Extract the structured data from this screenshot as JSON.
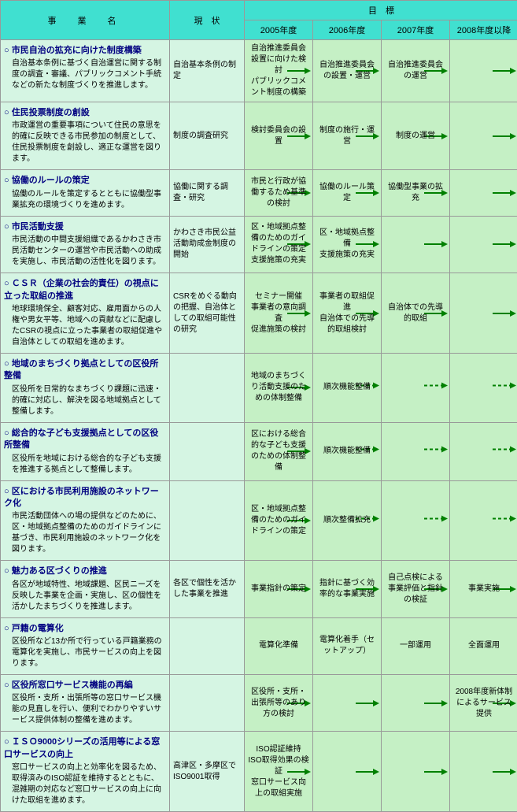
{
  "headers": {
    "business": "事　業　名",
    "current": "現　状",
    "target": "目　標",
    "years": [
      "2005年度",
      "2006年度",
      "2007年度",
      "2008年度以降"
    ]
  },
  "rows": [
    {
      "title": "市民自治の拡充に向けた制度構築",
      "desc": "自治基本条例に基づく自治運営に関する制度の調査・審議、パブリックコメント手続などの新たな制度づくりを推進します。",
      "current": "自治基本条例の制定",
      "y2005": "自治推進委員会設置に向けた検討\nパブリックコメント制度の構築",
      "y2006": "自治推進委員会の設置・運営",
      "y2007": "自治推進委員会の運営",
      "y2008": "",
      "arrows": {
        "y2005": "solid",
        "y2006": "solid",
        "y2007": "solid",
        "y2008": "solid"
      }
    },
    {
      "title": "住民投票制度の創設",
      "desc": "市政運営の重要事項について住民の意思を的確に反映できる市民参加の制度として、住民投票制度を創設し、適正な運営を図ります。",
      "current": "制度の調査研究",
      "y2005": "検討委員会の設置",
      "y2006": "制度の施行・運営",
      "y2007": "制度の運営",
      "y2008": "",
      "arrows": {
        "y2005": "solid",
        "y2006": "solid",
        "y2007": "solid",
        "y2008": "solid"
      }
    },
    {
      "title": "協働のルールの策定",
      "desc": "協働のルールを策定するとともに協働型事業拡充の環境づくりを進めます。",
      "current": "協働に関する調査・研究",
      "y2005": "市民と行政が協働するため基準の検討",
      "y2006": "協働のルール策定",
      "y2007": "協働型事業の拡充",
      "y2008": "",
      "arrows": {
        "y2005": "solid",
        "y2006": "solid",
        "y2007": "solid",
        "y2008": "solid"
      }
    },
    {
      "title": "市民活動支援",
      "desc": "市民活動の中間支援組織であるかわさき市民活動センターの運営や市民活動への助成を実施し、市民活動の活性化を図ります。",
      "current": "かわさき市民公益活動助成金制度の開始",
      "y2005": "区・地域拠点整備のためのガイドラインの策定\n支援施策の充実",
      "y2006": "区・地域拠点整備\n支援施策の充実",
      "y2007": "",
      "y2008": "",
      "arrows": {
        "y2005": "solid",
        "y2006": "solid",
        "y2007": "solid",
        "y2008": "solid"
      }
    },
    {
      "title": "ＣＳＲ（企業の社会的責任）の視点に立った取組の推進",
      "desc": "地球環境保全、顧客対応、雇用面からの人権や男女平等、地域への貢献などに配慮したCSRの視点に立った事業者の取組促進や自治体としての取組を進めます。",
      "current": "CSRをめぐる動向の把握、自治体としての取組可能性の研究",
      "y2005": "セミナー開催\n事業者の意向調査\n促進施策の検討",
      "y2006": "事業者の取組促進\n自治体での先導的取組検討",
      "y2007": "自治体での先導的取組",
      "y2008": "",
      "arrows": {
        "y2005": "solid",
        "y2006": "solid",
        "y2007": "solid",
        "y2008": "solid"
      }
    },
    {
      "title": "地域のまちづくり拠点としての区役所整備",
      "desc": "区役所を日常的なまちづくり課題に迅速・的確に対応し、解決を図る地域拠点として整備します。",
      "current": "",
      "y2005": "地域のまちづくり活動支援のための体制整備",
      "y2006": "順次機能整備",
      "y2007": "",
      "y2008": "",
      "arrows": {
        "y2005": "solid",
        "y2006": "dash",
        "y2007": "dash",
        "y2008": "dash"
      }
    },
    {
      "title": "総合的な子ども支援拠点としての区役所整備",
      "desc": "区役所を地域における総合的な子ども支援を推進する拠点として整備します。",
      "current": "",
      "y2005": "区における総合的な子ども支援のための体制整備",
      "y2006": "順次機能整備",
      "y2007": "",
      "y2008": "",
      "arrows": {
        "y2005": "solid",
        "y2006": "dash",
        "y2007": "dash",
        "y2008": "dash"
      }
    },
    {
      "title": "区における市民利用施設のネットワーク化",
      "desc": "市民活動団体への場の提供などのために、区・地域拠点整備のためのガイドラインに基づき、市民利用施設のネットワーク化を図ります。",
      "current": "",
      "y2005": "区・地域拠点整備のためのガイドラインの策定",
      "y2006": "順次整備拡充",
      "y2007": "",
      "y2008": "",
      "arrows": {
        "y2005": "solid",
        "y2006": "dash",
        "y2007": "dash",
        "y2008": "dash"
      }
    },
    {
      "title": "魅力ある区づくりの推進",
      "desc": "各区が地域特性、地域課題、区民ニーズを反映した事業を企画・実施し、区の個性を活かしたまちづくりを推進します。",
      "current": "各区で個性を活かした事業を推進",
      "y2005": "事業指針の策定",
      "y2006": "指針に基づく効率的な事業実施",
      "y2007": "自己点検による事業評価と指針の検証",
      "y2008": "事業実施",
      "arrows": {
        "y2005": "solid",
        "y2006": "solid",
        "y2007": "solid",
        "y2008": "solid"
      }
    },
    {
      "title": "戸籍の電算化",
      "desc": "区役所など13か所で行っている戸籍業務の電算化を実施し、市民サービスの向上を図ります。",
      "current": "",
      "y2005": "電算化準備",
      "y2006": "電算化着手（セットアップ）",
      "y2007": "一部運用",
      "y2008": "全面運用",
      "arrows": {
        "y2005": "",
        "y2006": "",
        "y2007": "",
        "y2008": ""
      }
    },
    {
      "title": "区役所窓口サービス機能の再編",
      "desc": "区役所・支所・出張所等の窓口サービス機能の見直しを行い、便利でわかりやすいサービス提供体制の整備を進めます。",
      "current": "",
      "y2005": "区役所・支所・出張所等のあり方の検討",
      "y2006": "",
      "y2007": "",
      "y2008": "2008年度新体制によるサービス提供",
      "arrows": {
        "y2005": "solid",
        "y2006": "solid",
        "y2007": "solid",
        "y2008": "solid"
      }
    },
    {
      "title": "ＩＳＯ9000シリーズの活用等による窓口サービスの向上",
      "desc": "窓口サービスの向上と効率化を図るため、取得済みのISO認証を維持するとともに、混雑期の対応など窓口サービスの向上に向けた取組を進めます。",
      "current": "高津区・多摩区でISO9001取得",
      "y2005": "ISO認証維持\nISO取得効果の検証\n窓口サービス向上の取組実施",
      "y2006": "",
      "y2007": "",
      "y2008": "",
      "arrows": {
        "y2005": "solid",
        "y2006": "solid",
        "y2007": "solid",
        "y2008": "solid"
      }
    }
  ]
}
